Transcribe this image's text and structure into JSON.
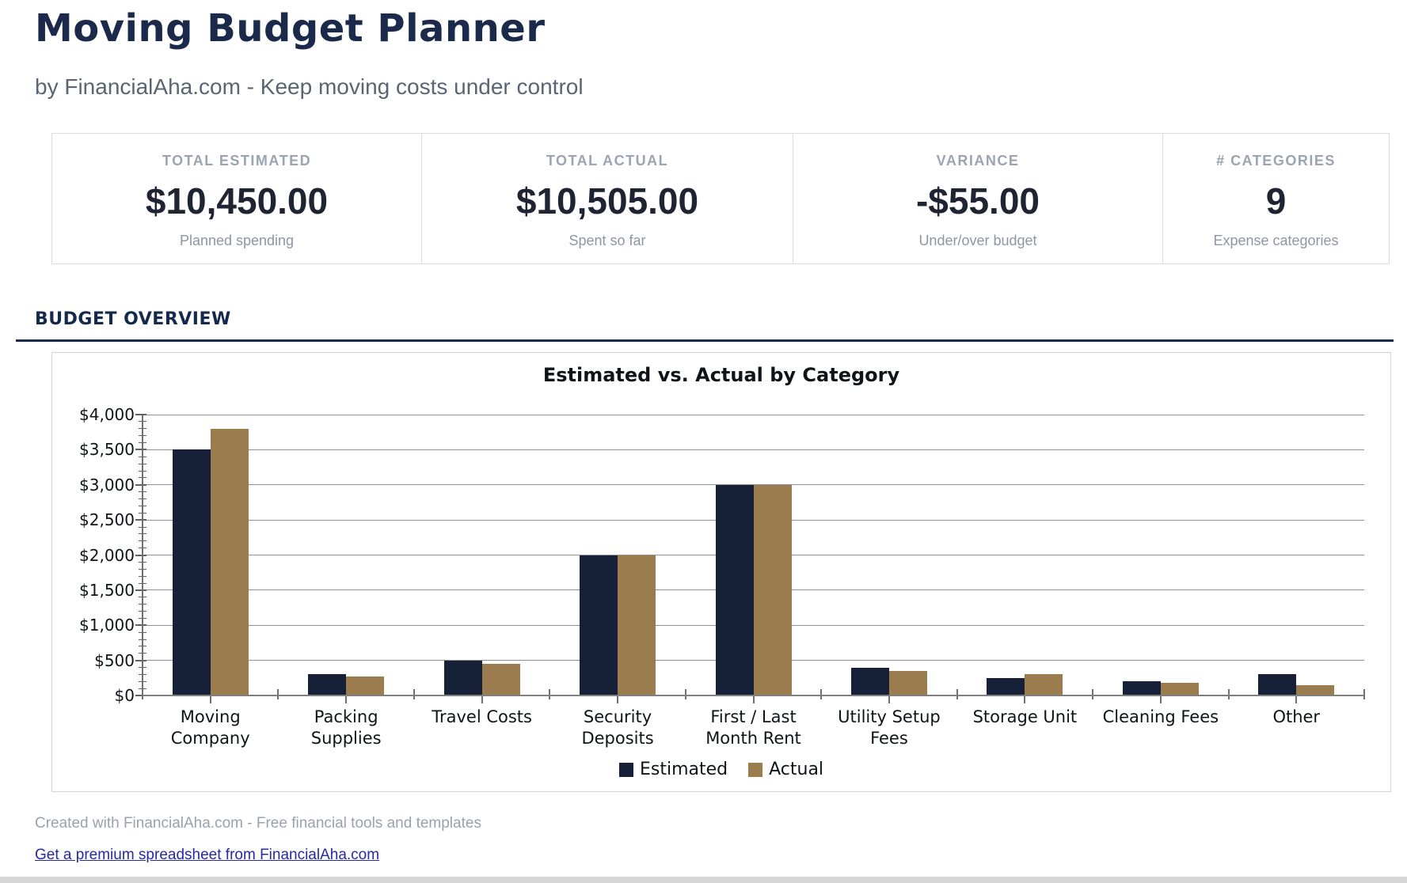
{
  "header": {
    "title": "Moving Budget Planner",
    "subtitle": "by FinancialAha.com - Keep moving costs under control"
  },
  "summary_cards": [
    {
      "label": "TOTAL ESTIMATED",
      "value": "$10,450.00",
      "sublabel": "Planned spending"
    },
    {
      "label": "TOTAL ACTUAL",
      "value": "$10,505.00",
      "sublabel": "Spent so far"
    },
    {
      "label": "VARIANCE",
      "value": "-$55.00",
      "sublabel": "Under/over budget"
    },
    {
      "label": "# CATEGORIES",
      "value": "9",
      "sublabel": "Expense categories"
    }
  ],
  "section": {
    "title": "BUDGET OVERVIEW"
  },
  "chart_data": {
    "type": "bar",
    "title": "Estimated vs. Actual by Category",
    "categories": [
      "Moving\nCompany",
      "Packing\nSupplies",
      "Travel Costs",
      "Security\nDeposits",
      "First / Last\nMonth Rent",
      "Utility Setup\nFees",
      "Storage Unit",
      "Cleaning Fees",
      "Other"
    ],
    "series": [
      {
        "name": "Estimated",
        "color": "#162138",
        "values": [
          3500,
          300,
          500,
          2000,
          3000,
          400,
          250,
          200,
          300
        ]
      },
      {
        "name": "Actual",
        "color": "#9b7c4e",
        "values": [
          3800,
          275,
          450,
          2000,
          3000,
          350,
          300,
          180,
          150
        ]
      }
    ],
    "ylabel_prefix": "$",
    "ylim": [
      0,
      4000
    ],
    "ytick_step": 500,
    "minor_tick_step": 100,
    "grid": true,
    "legend_position": "bottom"
  },
  "footer": {
    "credit": "Created with FinancialAha.com - Free financial tools and templates",
    "link": "Get a premium spreadsheet from FinancialAha.com"
  },
  "colors": {
    "accent_navy": "#1b2b4b",
    "bar_estimated": "#162138",
    "bar_actual": "#9b7c4e",
    "link_blue": "#2929a3"
  }
}
